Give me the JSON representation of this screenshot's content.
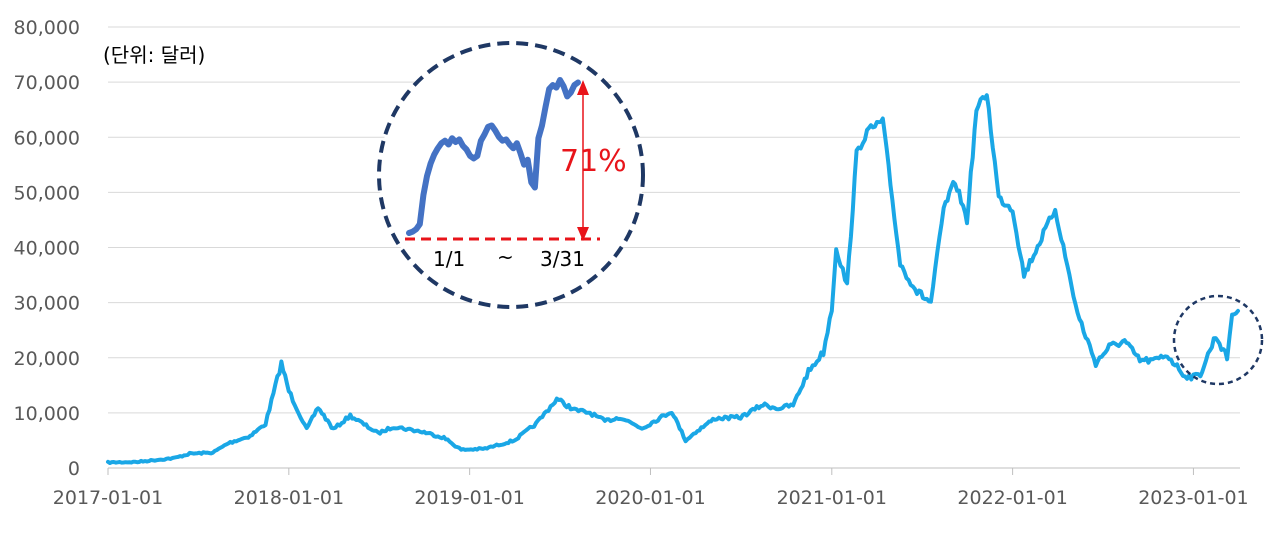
{
  "chart_data": {
    "type": "line",
    "unit_label": "(단위: 달러)",
    "x_tick_labels": [
      "2017-01-01",
      "2018-01-01",
      "2019-01-01",
      "2020-01-01",
      "2021-01-01",
      "2022-01-01",
      "2023-01-01"
    ],
    "y_tick_labels": [
      "0",
      "10,000",
      "20,000",
      "30,000",
      "40,000",
      "50,000",
      "60,000",
      "70,000",
      "80,000"
    ],
    "ylim": [
      0,
      80000
    ],
    "xlim": [
      "2017-01-01",
      "2023-04-05"
    ],
    "grid": "horizontal",
    "line_color": "#1aa7e6",
    "series": [
      {
        "x": [
          "2017-01-01",
          "2017-03-01",
          "2017-05-15",
          "2017-06-15",
          "2017-08-01",
          "2017-09-01",
          "2017-10-15",
          "2017-11-15",
          "2017-12-17",
          "2018-01-01",
          "2018-02-06",
          "2018-03-01",
          "2018-04-01",
          "2018-05-05",
          "2018-06-30",
          "2018-08-01",
          "2018-10-01",
          "2018-11-10",
          "2018-12-15",
          "2019-02-01",
          "2019-04-01",
          "2019-05-15",
          "2019-06-26",
          "2019-08-01",
          "2019-09-01",
          "2019-10-01",
          "2019-11-01",
          "2019-12-15",
          "2020-02-13",
          "2020-03-12",
          "2020-04-01",
          "2020-05-10",
          "2020-07-01",
          "2020-08-15",
          "2020-09-15",
          "2020-10-15",
          "2020-11-15",
          "2020-12-15",
          "2021-01-01",
          "2021-01-10",
          "2021-02-01",
          "2021-02-20",
          "2021-03-13",
          "2021-04-14",
          "2021-05-19",
          "2021-06-22",
          "2021-07-20",
          "2021-08-15",
          "2021-09-07",
          "2021-10-01",
          "2021-10-20",
          "2021-11-10",
          "2021-12-04",
          "2022-01-01",
          "2022-01-24",
          "2022-03-28",
          "2022-05-12",
          "2022-06-18",
          "2022-07-15",
          "2022-08-15",
          "2022-09-15",
          "2022-10-15",
          "2022-11-09",
          "2022-12-15",
          "2023-01-01",
          "2023-01-15",
          "2023-02-15",
          "2023-03-10",
          "2023-03-20",
          "2023-04-01"
        ],
        "y": [
          1000,
          1100,
          1800,
          2600,
          2800,
          4500,
          5800,
          8000,
          19000,
          14000,
          7000,
          11000,
          7000,
          9500,
          6300,
          7500,
          6500,
          5500,
          3300,
          3500,
          5000,
          8000,
          12500,
          10500,
          10000,
          8500,
          9200,
          7200,
          10300,
          5000,
          6500,
          9000,
          9200,
          11500,
          10800,
          11400,
          17500,
          21000,
          29000,
          40000,
          33000,
          57000,
          61000,
          63000,
          37000,
          32000,
          30000,
          47000,
          52000,
          45000,
          65000,
          68000,
          49000,
          47000,
          35000,
          47000,
          28000,
          19000,
          22000,
          23000,
          19500,
          19500,
          20500,
          16700,
          16500,
          17000,
          24000,
          20000,
          28000,
          28500
        ]
      }
    ],
    "inset": {
      "start_label": "1/1",
      "tilde": "~",
      "end_label": "3/31",
      "percent_label": "71%",
      "y": [
        16500,
        16600,
        16800,
        17200,
        19500,
        21000,
        22000,
        22700,
        23200,
        23600,
        23800,
        23500,
        24000,
        23700,
        23900,
        23400,
        23100,
        22600,
        22400,
        22600,
        23800,
        24300,
        24900,
        25000,
        24600,
        24100,
        23800,
        23900,
        23500,
        23200,
        23600,
        22800,
        21900,
        22300,
        20500,
        20100,
        24000,
        25000,
        26500,
        27900,
        28200,
        28000,
        28600,
        28100,
        27300,
        27600,
        28200,
        28400
      ]
    }
  }
}
